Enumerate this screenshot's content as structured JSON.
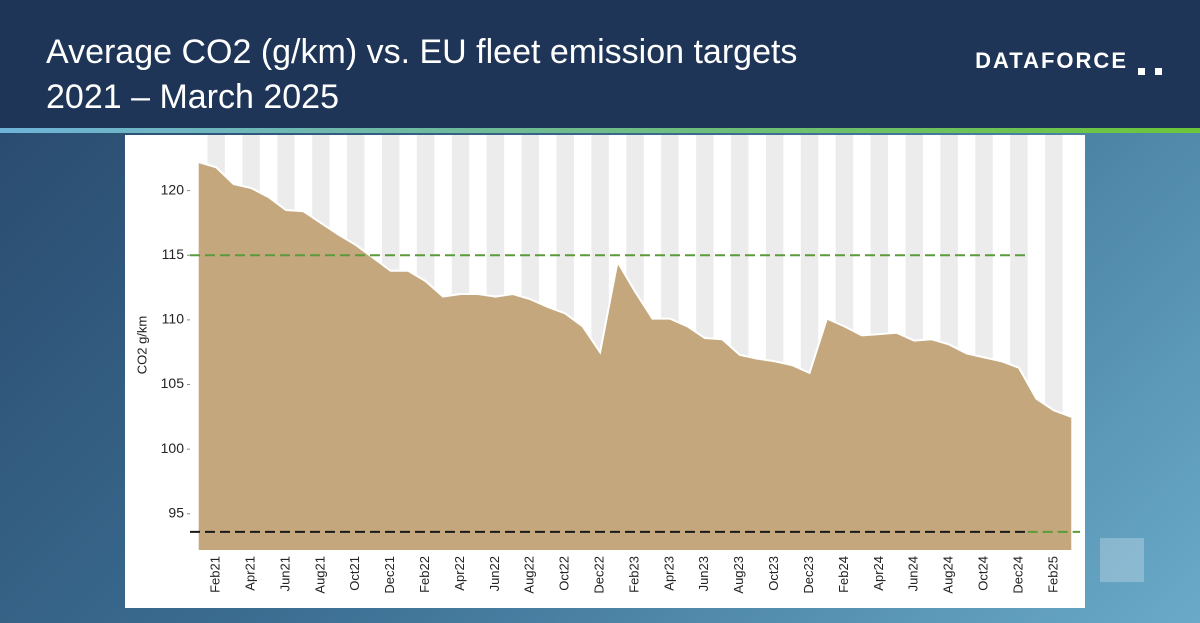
{
  "chart_data": {
    "type": "area",
    "title": "Average CO2 (g/km) vs. EU fleet emission targets",
    "subtitle": "2021 – March 2025",
    "logo": "DATAFORCE",
    "y_label": "CO2 g/km",
    "categories": [
      null,
      "Feb21",
      null,
      "Apr21",
      null,
      "Jun21",
      null,
      "Aug21",
      null,
      "Oct21",
      null,
      "Dec21",
      null,
      "Feb22",
      null,
      "Apr22",
      null,
      "Jun22",
      null,
      "Aug22",
      null,
      "Oct22",
      null,
      "Dec22",
      null,
      "Feb23",
      null,
      "Apr23",
      null,
      "Jun23",
      null,
      "Aug23",
      null,
      "Oct23",
      null,
      "Dec23",
      null,
      "Feb24",
      null,
      "Apr24",
      null,
      "Jun24",
      null,
      "Aug24",
      null,
      "Oct24",
      null,
      "Dec24",
      null,
      "Feb25",
      null
    ],
    "values": [
      122.2,
      121.8,
      120.5,
      120.2,
      119.5,
      118.5,
      118.4,
      117.5,
      116.6,
      115.8,
      114.8,
      113.8,
      113.8,
      113.0,
      111.8,
      112.0,
      112.0,
      111.8,
      112.0,
      111.6,
      111.0,
      110.5,
      109.5,
      107.5,
      114.5,
      112.2,
      110.1,
      110.1,
      109.5,
      108.6,
      108.5,
      107.3,
      107.0,
      106.8,
      106.5,
      105.9,
      110.1,
      109.5,
      108.8,
      108.9,
      109.0,
      108.4,
      108.5,
      108.1,
      107.4,
      107.1,
      106.8,
      106.3,
      103.9,
      103.0,
      102.5
    ],
    "color": "#c4a77d",
    "ylim": [
      92.2,
      124.3
    ],
    "yticks": [
      95,
      100,
      105,
      110,
      115,
      120
    ],
    "band_shading": true,
    "target_lines": [
      {
        "value": 115,
        "color": "#5b9b3c",
        "to": "Dec24"
      },
      {
        "value": 93.6,
        "color": "#1a1a1a",
        "to": "Dec24"
      },
      {
        "value": 93.6,
        "color": "#5b9b3c",
        "from": "Dec24"
      }
    ]
  }
}
